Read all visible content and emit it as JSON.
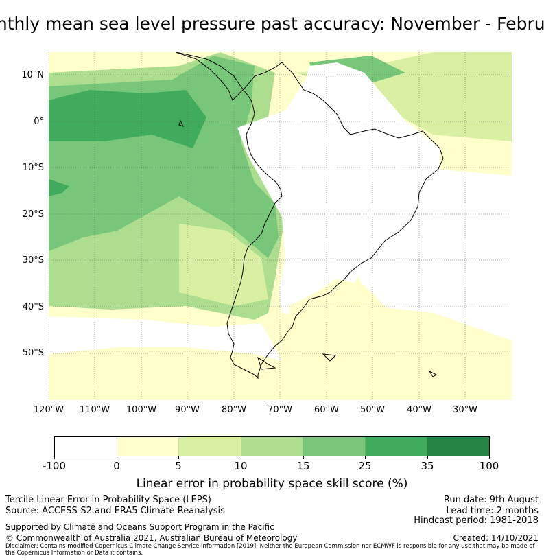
{
  "title": "Monthly mean sea level pressure past accuracy: November - February",
  "map": {
    "lat_labels": [
      "10°N",
      "0°",
      "10°S",
      "20°S",
      "30°S",
      "40°S",
      "50°S"
    ],
    "lon_labels": [
      "120°W",
      "110°W",
      "100°W",
      "90°W",
      "80°W",
      "70°W",
      "60°W",
      "50°W",
      "40°W",
      "30°W"
    ]
  },
  "colorbar": {
    "label": "Linear error in probability space skill score (%)",
    "ticks": [
      "-100",
      "0",
      "5",
      "10",
      "15",
      "25",
      "35",
      "100"
    ],
    "colors": [
      "#ffffff",
      "#ffffcc",
      "#d9f0a3",
      "#addd8e",
      "#78c679",
      "#41ab5d",
      "#238443"
    ]
  },
  "footer": {
    "line1": "Tercile Linear Error in Probability Space (LEPS)",
    "line2": "Source: ACCESS-S2 and ERA5 Climate Reanalysis",
    "support": "Supported by Climate and Oceans Support Program in the Pacific",
    "copyright": "© Commonwealth of Australia 2021, Australian Bureau of Meteorology",
    "disclaimer": "Disclaimer: Contains modified Copernicus Climate Change Service Information [2019]. Neither the European Commission nor ECMWF is responsible for any use that may be made of the Copernicus Information or Data it contains.",
    "run_date": "Run date: 9th August",
    "lead_time": "Lead time: 2 months",
    "hindcast": "Hindcast period: 1981-2018",
    "created": "Created: 14/10/2021"
  }
}
